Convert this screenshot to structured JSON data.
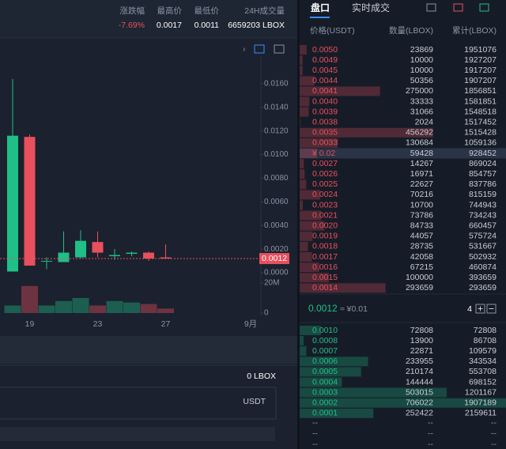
{
  "header": {
    "labels": [
      "涨跌幅",
      "最高价",
      "最低价",
      "24H成交量"
    ],
    "values": [
      "-7.69%",
      "0.0017",
      "0.0011",
      "6659203 LBOX"
    ]
  },
  "chart": {
    "type": "candlestick",
    "categories": [
      null,
      "19",
      null,
      null,
      null,
      "23",
      null,
      null,
      null,
      "27",
      null,
      null,
      null,
      null,
      "9月"
    ],
    "open": [
      0.0001,
      0.0115,
      0.001,
      0.0009,
      0.0013,
      0.0026,
      0.0014,
      0.0016,
      0.0017,
      0.0013,
      null,
      null,
      null,
      null,
      null
    ],
    "high": [
      0.0164,
      0.0117,
      0.0013,
      0.0035,
      0.0036,
      0.0035,
      0.002,
      0.0018,
      0.0018,
      0.0024,
      null,
      null,
      null,
      null,
      null
    ],
    "low": [
      0.0001,
      0.0006,
      0.0003,
      0.0009,
      0.0012,
      0.0013,
      0.0011,
      0.0014,
      0.001,
      0.0012,
      null,
      null,
      null,
      null,
      null
    ],
    "close": [
      0.0116,
      0.0006,
      0.001,
      0.0017,
      0.0027,
      0.0017,
      0.0015,
      0.0017,
      0.0012,
      0.0012,
      null,
      null,
      null,
      null,
      null
    ],
    "volume": [
      5000000,
      18000000,
      5000000,
      8000000,
      10000000,
      5000000,
      8000000,
      7000000,
      6000000,
      3000000,
      null,
      null,
      null,
      null,
      null
    ],
    "ylim": [
      0,
      0.017
    ],
    "yticks": [
      {
        "value": 0,
        "label": "0.0000"
      },
      {
        "value": 0.002,
        "label": "0.0020"
      },
      {
        "value": 0.004,
        "label": "0.0040"
      },
      {
        "value": 0.006,
        "label": "0.0060"
      },
      {
        "value": 0.008,
        "label": "0.0080"
      },
      {
        "value": 0.01,
        "label": "0.0100"
      },
      {
        "value": 0.012,
        "label": "0.0120"
      },
      {
        "value": 0.014,
        "label": "0.0140"
      },
      {
        "value": 0.016,
        "label": "0.0160"
      }
    ],
    "volume_lim": [
      0,
      20000000
    ],
    "volume_ticks": [
      0,
      {
        "value": 20000000,
        "label": "20M"
      }
    ],
    "current_price": {
      "value": 0.0012,
      "label": "0.0012"
    },
    "up_color": "#1fbf88",
    "down_color": "#e8505d"
  },
  "balance": "0 LBOX",
  "currency": "USDT",
  "orderbook": {
    "tabs": [
      "盘口",
      "实时成交"
    ],
    "columns": [
      "价格(USDT)",
      "数量(LBOX)",
      "累计(LBOX)"
    ],
    "asks": [
      [
        "0.0050",
        23869,
        1951076
      ],
      [
        "0.0049",
        10000,
        1927207
      ],
      [
        "0.0045",
        10000,
        1917207
      ],
      [
        "0.0044",
        50356,
        1907207
      ],
      [
        "0.0041",
        275000,
        1856851
      ],
      [
        "0.0040",
        33333,
        1581851
      ],
      [
        "0.0039",
        31066,
        1548518
      ],
      [
        "0.0038",
        2024,
        1517452
      ],
      [
        "0.0035",
        456292,
        1515428
      ],
      [
        "0.0033",
        130684,
        1059136
      ],
      [
        "¥ 0.02",
        59428,
        928452
      ],
      [
        "0.0027",
        14267,
        869024
      ],
      [
        "0.0026",
        16971,
        854757
      ],
      [
        "0.0025",
        22627,
        837786
      ],
      [
        "0.0024",
        70216,
        815159
      ],
      [
        "0.0023",
        10700,
        744943
      ],
      [
        "0.0021",
        73786,
        734243
      ],
      [
        "0.0020",
        84733,
        660457
      ],
      [
        "0.0019",
        44057,
        575724
      ],
      [
        "0.0018",
        28735,
        531667
      ],
      [
        "0.0017",
        42058,
        502932
      ],
      [
        "0.0016",
        67215,
        460874
      ],
      [
        "0.0015",
        100000,
        393659
      ],
      [
        "0.0014",
        293659,
        293659
      ]
    ],
    "last_price": "0.0012",
    "last_price_cny": "≈ ¥0.01",
    "precision": 4,
    "bids": [
      [
        "0.0010",
        72808,
        72808
      ],
      [
        "0.0008",
        13900,
        86708
      ],
      [
        "0.0007",
        22871,
        109579
      ],
      [
        "0.0006",
        233955,
        343534
      ],
      [
        "0.0005",
        210174,
        553708
      ],
      [
        "0.0004",
        144444,
        698152
      ],
      [
        "0.0003",
        503015,
        1201167
      ],
      [
        "0.0002",
        706022,
        1907189
      ],
      [
        "0.0001",
        252422,
        2159611
      ]
    ],
    "empty_rows": [
      [
        "--",
        "--",
        "--"
      ],
      [
        "--",
        "--",
        "--"
      ],
      [
        "--",
        "--",
        "--"
      ]
    ]
  }
}
